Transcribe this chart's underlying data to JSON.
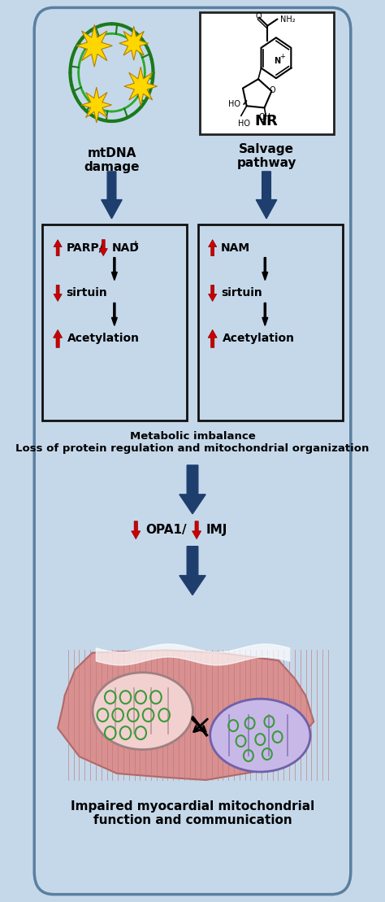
{
  "bg_color": "#c5d8ea",
  "border_color": "#7090b0",
  "title_bottom": "Impaired myocardial mitochondrial\nfunction and communication",
  "metabolic_text": "Metabolic imbalance\nLoss of protein regulation and mitochondrial organization",
  "left_label": "mtDNA\ndamage",
  "right_label": "Salvage\npathway",
  "fig_w": 4.74,
  "fig_h": 11.09,
  "dpi": 100
}
